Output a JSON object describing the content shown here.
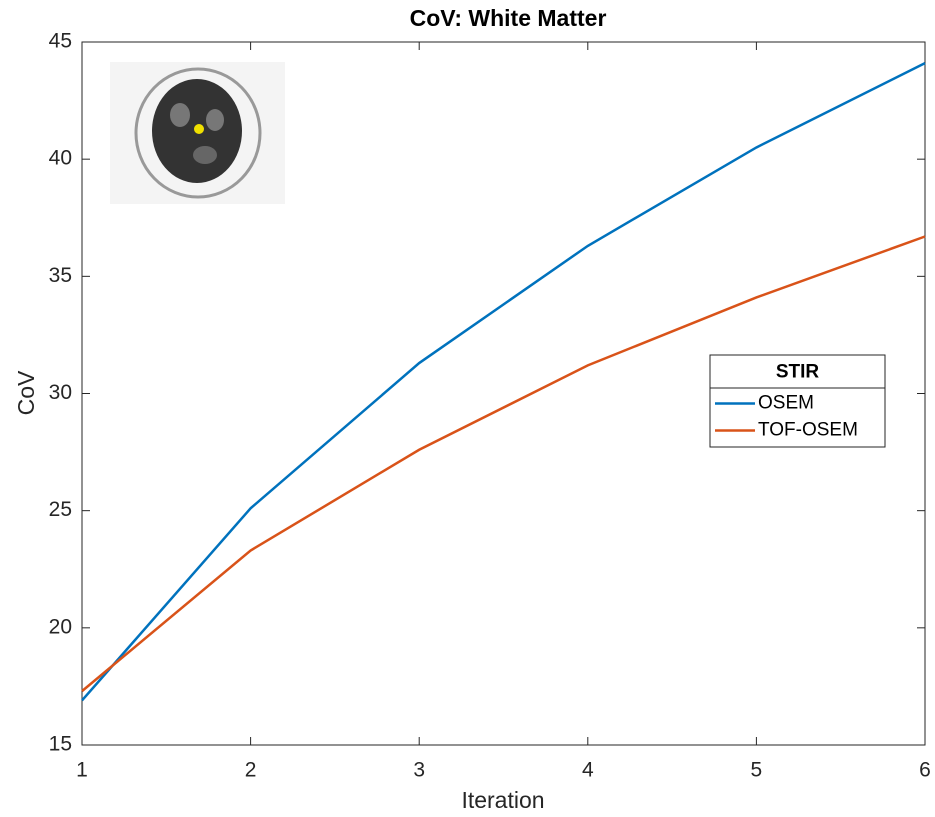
{
  "chart_data": {
    "type": "line",
    "title": "CoV: White Matter",
    "x_label": "Iteration",
    "y_label": "CoV",
    "x": [
      1,
      2,
      3,
      4,
      5,
      6
    ],
    "series": [
      {
        "name": "OSEM",
        "color": "#0072BD",
        "values": [
          16.9,
          25.1,
          31.3,
          36.3,
          40.5,
          44.1
        ]
      },
      {
        "name": "TOF-OSEM",
        "color": "#D95319",
        "values": [
          17.3,
          23.3,
          27.6,
          31.2,
          34.1,
          36.7
        ]
      }
    ],
    "xlim": [
      1,
      6
    ],
    "xticks": [
      1,
      2,
      3,
      4,
      5,
      6
    ],
    "ylim": [
      15,
      45
    ],
    "yticks": [
      15,
      20,
      25,
      30,
      35,
      40,
      45
    ],
    "legend_title": "STIR",
    "legend_position": "east",
    "grid": false
  }
}
